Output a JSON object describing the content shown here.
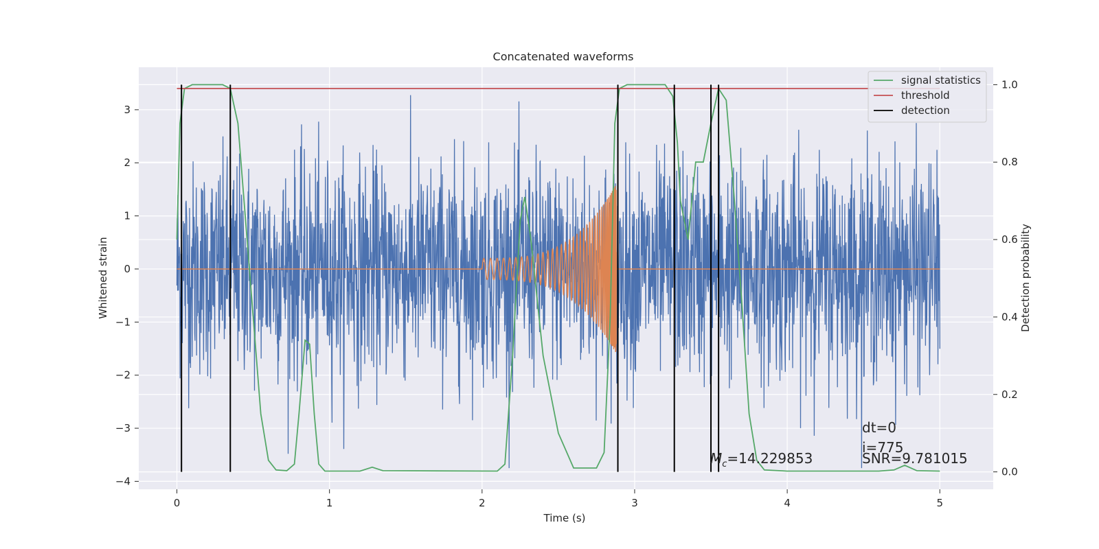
{
  "chart_data": {
    "type": "line",
    "title": "Concatenated waveforms",
    "xlabel": "Time (s)",
    "ylabel": "Whitened strain",
    "y2label": "Detection probability",
    "xlim": [
      -0.25,
      5.35
    ],
    "ylim": [
      -4.15,
      3.8
    ],
    "y2lim": [
      -0.045,
      1.045
    ],
    "x_ticks": [
      0,
      1,
      2,
      3,
      4,
      5
    ],
    "y_ticks": [
      -4,
      -3,
      -2,
      -1,
      0,
      1,
      2,
      3
    ],
    "y2_ticks": [
      0.0,
      0.2,
      0.4,
      0.6,
      0.8,
      1.0
    ],
    "grid": true,
    "legend_position": "top-right",
    "series": [
      {
        "name": "",
        "color": "#4c72b0",
        "axis": "left",
        "description_type": "noise",
        "x_range": [
          0,
          5
        ],
        "typical_amplitude": 1.0,
        "y_min": -3.75,
        "y_max": 3.48
      },
      {
        "name": "",
        "color": "#dd8452",
        "axis": "left",
        "description_type": "chirp",
        "x_range": [
          0,
          5
        ],
        "chirp_start": 2.0,
        "chirp_end": 2.88,
        "start_amplitude": 0.2,
        "end_amplitude": 1.6
      },
      {
        "name": "signal statistics",
        "color": "#55a868",
        "axis": "right",
        "points": [
          [
            0,
            0.6
          ],
          [
            0.02,
            0.9
          ],
          [
            0.05,
            0.99
          ],
          [
            0.1,
            1.0
          ],
          [
            0.3,
            1.0
          ],
          [
            0.35,
            0.99
          ],
          [
            0.4,
            0.9
          ],
          [
            0.45,
            0.65
          ],
          [
            0.5,
            0.4
          ],
          [
            0.55,
            0.15
          ],
          [
            0.6,
            0.03
          ],
          [
            0.65,
            0.005
          ],
          [
            0.72,
            0.003
          ],
          [
            0.77,
            0.02
          ],
          [
            0.8,
            0.15
          ],
          [
            0.84,
            0.34
          ],
          [
            0.87,
            0.33
          ],
          [
            0.9,
            0.15
          ],
          [
            0.93,
            0.02
          ],
          [
            0.97,
            0.002
          ],
          [
            1.2,
            0.002
          ],
          [
            1.28,
            0.012
          ],
          [
            1.35,
            0.003
          ],
          [
            2.1,
            0.002
          ],
          [
            2.15,
            0.02
          ],
          [
            2.2,
            0.3
          ],
          [
            2.25,
            0.65
          ],
          [
            2.28,
            0.71
          ],
          [
            2.32,
            0.6
          ],
          [
            2.4,
            0.3
          ],
          [
            2.5,
            0.1
          ],
          [
            2.6,
            0.01
          ],
          [
            2.75,
            0.01
          ],
          [
            2.8,
            0.05
          ],
          [
            2.84,
            0.4
          ],
          [
            2.87,
            0.9
          ],
          [
            2.9,
            0.99
          ],
          [
            2.95,
            1.0
          ],
          [
            3.2,
            1.0
          ],
          [
            3.25,
            0.97
          ],
          [
            3.28,
            0.85
          ],
          [
            3.3,
            0.7
          ],
          [
            3.35,
            0.6
          ],
          [
            3.4,
            0.8
          ],
          [
            3.45,
            0.8
          ],
          [
            3.5,
            0.9
          ],
          [
            3.55,
            0.99
          ],
          [
            3.6,
            0.96
          ],
          [
            3.65,
            0.72
          ],
          [
            3.7,
            0.45
          ],
          [
            3.75,
            0.15
          ],
          [
            3.8,
            0.03
          ],
          [
            3.85,
            0.005
          ],
          [
            4.0,
            0.002
          ],
          [
            4.6,
            0.002
          ],
          [
            4.7,
            0.005
          ],
          [
            4.77,
            0.017
          ],
          [
            4.85,
            0.003
          ],
          [
            5.0,
            0.002
          ]
        ]
      },
      {
        "name": "threshold",
        "color": "#c44e52",
        "axis": "right",
        "value": 0.99
      },
      {
        "name": "detection",
        "color": "#000000",
        "axis": "right",
        "x_values": [
          0.03,
          0.35,
          2.89,
          3.26,
          3.5,
          3.55
        ]
      }
    ],
    "annotations": [
      {
        "text": "dt=0"
      },
      {
        "text": "i=775"
      },
      {
        "text": "SNR=9.781015"
      },
      {
        "text": "M",
        "subscript": "c",
        "suffix": "=14.229853"
      }
    ]
  }
}
